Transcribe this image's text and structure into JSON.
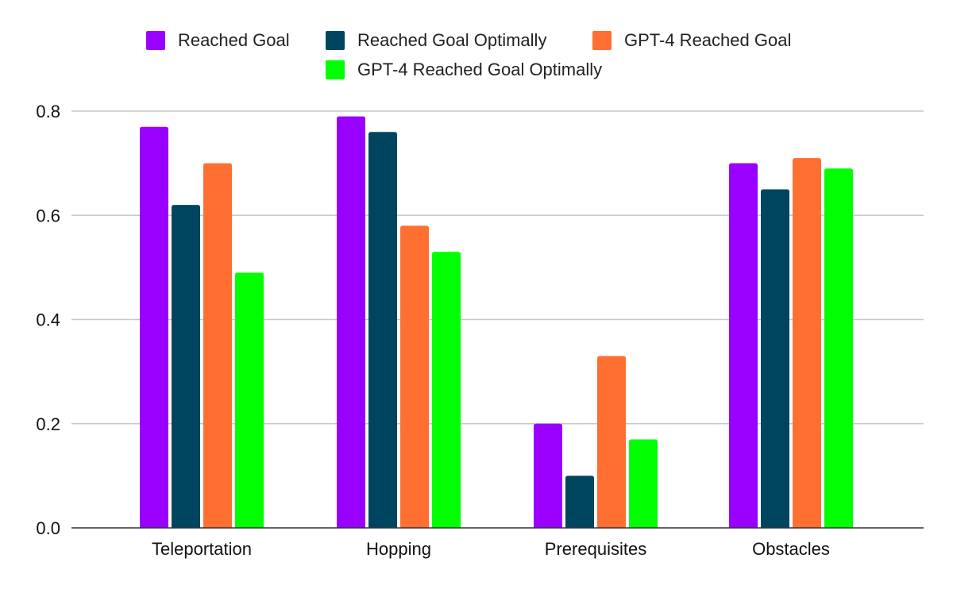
{
  "chart_data": {
    "type": "bar",
    "title": "",
    "xlabel": "",
    "ylabel": "",
    "categories": [
      "Teleportation",
      "Hopping",
      "Prerequisites",
      "Obstacles"
    ],
    "series": [
      {
        "name": "Reached Goal",
        "color": "#9900ff",
        "values": [
          0.77,
          0.79,
          0.2,
          0.7
        ]
      },
      {
        "name": "Reached Goal Optimally",
        "color": "#004560",
        "values": [
          0.62,
          0.76,
          0.1,
          0.65
        ]
      },
      {
        "name": "GPT-4 Reached Goal",
        "color": "#ff6f31",
        "values": [
          0.7,
          0.58,
          0.33,
          0.71
        ]
      },
      {
        "name": "GPT-4 Reached Goal Optimally",
        "color": "#00ff00",
        "values": [
          0.49,
          0.53,
          0.17,
          0.69
        ]
      }
    ],
    "ylim": [
      0,
      0.8
    ],
    "yticks": [
      "0.0",
      "0.2",
      "0.4",
      "0.6",
      "0.8"
    ],
    "grid": true,
    "legend": "top"
  }
}
